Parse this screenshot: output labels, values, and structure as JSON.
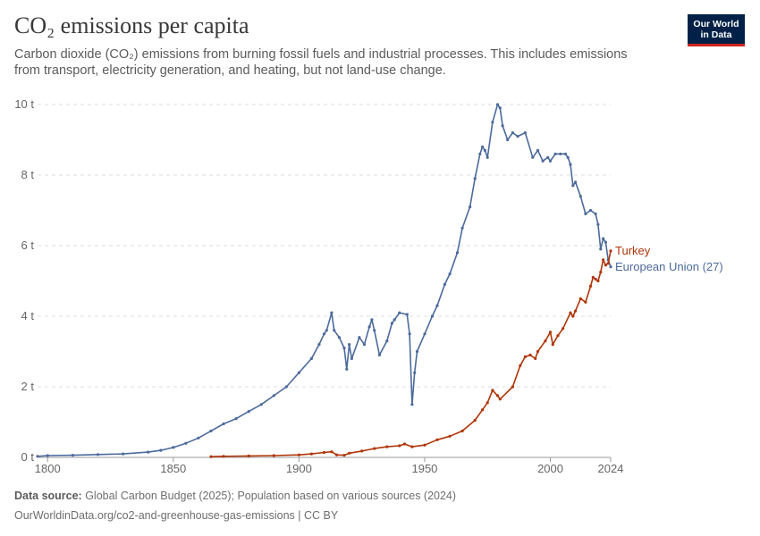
{
  "header": {
    "title": "CO₂ emissions per capita",
    "subtitle": "Carbon dioxide (CO₂) emissions from burning fossil fuels and industrial processes. This includes emissions from transport, electricity generation, and heating, but not land-use change."
  },
  "logo": {
    "line1": "Our World",
    "line2": "in Data"
  },
  "footer": {
    "source_label": "Data source:",
    "source_text": " Global Carbon Budget (2025); Population based on various sources (2024)",
    "url": "OurWorldinData.org/co2-and-greenhouse-gas-emissions | CC BY"
  },
  "colors": {
    "eu": "#4c6a9c",
    "turkey": "#b13507",
    "grid": "#dddddd"
  },
  "chart_data": {
    "type": "line",
    "title": "CO₂ emissions per capita",
    "xlim": [
      1796,
      2024
    ],
    "ylim": [
      0,
      10
    ],
    "x_ticks": [
      1800,
      1850,
      1900,
      1950,
      2000,
      2024
    ],
    "x_tick_labels": [
      "1800",
      "1850",
      "1900",
      "1950",
      "2000",
      "2024"
    ],
    "y_ticks": [
      0,
      2,
      4,
      6,
      8,
      10
    ],
    "y_tick_labels": [
      "0 t",
      "2 t",
      "4 t",
      "6 t",
      "8 t",
      "10 t"
    ],
    "grid": "horizontal dashed",
    "legend": "labels at line ends (right)",
    "series": [
      {
        "name": "European Union (27)",
        "color": "#4c6a9c",
        "x": [
          1796,
          1800,
          1810,
          1820,
          1830,
          1840,
          1845,
          1850,
          1855,
          1860,
          1865,
          1870,
          1875,
          1880,
          1885,
          1890,
          1895,
          1900,
          1905,
          1908,
          1910,
          1911,
          1913,
          1914,
          1916,
          1918,
          1919,
          1920,
          1921,
          1924,
          1926,
          1928,
          1929,
          1930,
          1932,
          1935,
          1937,
          1938,
          1940,
          1943,
          1944,
          1945,
          1946,
          1947,
          1950,
          1953,
          1955,
          1958,
          1960,
          1963,
          1965,
          1968,
          1970,
          1972,
          1973,
          1974,
          1975,
          1977,
          1979,
          1980,
          1981,
          1983,
          1985,
          1987,
          1990,
          1993,
          1995,
          1997,
          1999,
          2000,
          2002,
          2004,
          2006,
          2007,
          2008,
          2009,
          2010,
          2012,
          2014,
          2016,
          2018,
          2019,
          2020,
          2021,
          2022,
          2023,
          2024
        ],
        "y": [
          0.03,
          0.05,
          0.06,
          0.08,
          0.1,
          0.15,
          0.2,
          0.28,
          0.4,
          0.55,
          0.75,
          0.95,
          1.1,
          1.3,
          1.5,
          1.75,
          2.0,
          2.4,
          2.8,
          3.2,
          3.5,
          3.6,
          4.1,
          3.6,
          3.4,
          3.1,
          2.5,
          3.2,
          2.8,
          3.4,
          3.2,
          3.7,
          3.9,
          3.6,
          2.9,
          3.3,
          3.8,
          3.9,
          4.1,
          4.05,
          3.5,
          1.5,
          2.4,
          3.0,
          3.5,
          4.0,
          4.3,
          4.9,
          5.2,
          5.8,
          6.5,
          7.1,
          7.9,
          8.6,
          8.8,
          8.7,
          8.5,
          9.5,
          10.0,
          9.9,
          9.4,
          9.0,
          9.2,
          9.1,
          9.2,
          8.5,
          8.7,
          8.4,
          8.5,
          8.4,
          8.6,
          8.6,
          8.6,
          8.5,
          8.3,
          7.7,
          7.8,
          7.4,
          6.9,
          7.0,
          6.9,
          6.6,
          5.9,
          6.2,
          6.1,
          5.6,
          5.4
        ]
      },
      {
        "name": "Turkey",
        "color": "#b13507",
        "x": [
          1865,
          1870,
          1880,
          1890,
          1900,
          1905,
          1910,
          1913,
          1915,
          1918,
          1920,
          1925,
          1930,
          1935,
          1940,
          1942,
          1945,
          1950,
          1955,
          1960,
          1965,
          1970,
          1973,
          1975,
          1977,
          1979,
          1980,
          1985,
          1988,
          1990,
          1992,
          1994,
          1995,
          1998,
          2000,
          2001,
          2003,
          2005,
          2008,
          2009,
          2010,
          2012,
          2014,
          2016,
          2017,
          2018,
          2019,
          2020,
          2021,
          2022,
          2023,
          2024
        ],
        "y": [
          0.02,
          0.03,
          0.04,
          0.05,
          0.07,
          0.1,
          0.14,
          0.16,
          0.07,
          0.06,
          0.12,
          0.18,
          0.25,
          0.3,
          0.33,
          0.38,
          0.3,
          0.35,
          0.5,
          0.6,
          0.75,
          1.05,
          1.35,
          1.55,
          1.9,
          1.75,
          1.65,
          2.0,
          2.6,
          2.85,
          2.9,
          2.8,
          3.0,
          3.3,
          3.55,
          3.2,
          3.45,
          3.65,
          4.1,
          4.0,
          4.15,
          4.5,
          4.4,
          4.85,
          5.1,
          5.05,
          5.0,
          5.25,
          5.6,
          5.45,
          5.5,
          5.85
        ]
      }
    ]
  }
}
